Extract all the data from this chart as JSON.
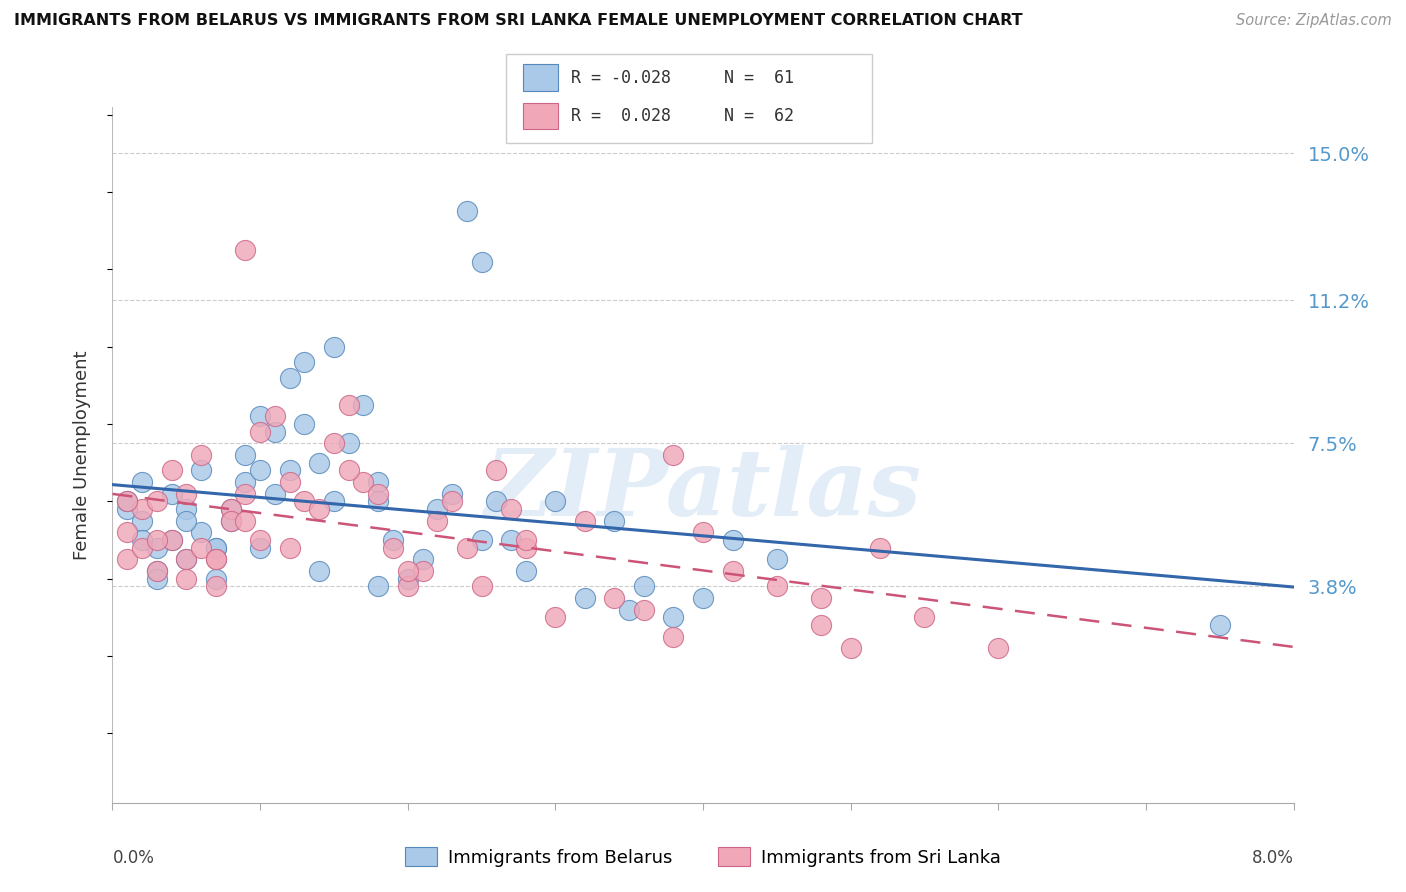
{
  "title": "IMMIGRANTS FROM BELARUS VS IMMIGRANTS FROM SRI LANKA FEMALE UNEMPLOYMENT CORRELATION CHART",
  "source": "Source: ZipAtlas.com",
  "ylabel": "Female Unemployment",
  "ytick_positions": [
    0.0,
    0.038,
    0.075,
    0.112,
    0.15
  ],
  "ytick_labels": [
    "",
    "3.8%",
    "7.5%",
    "11.2%",
    "15.0%"
  ],
  "xmin": 0.0,
  "xmax": 0.08,
  "ymin": -0.018,
  "ymax": 0.162,
  "watermark": "ZIPatlas",
  "belarus_label": "Immigrants from Belarus",
  "srilanka_label": "Immigrants from Sri Lanka",
  "belarus_color": "#aac8e8",
  "belarus_edge": "#5588bb",
  "srilanka_color": "#f0a8b8",
  "srilanka_edge": "#cc6688",
  "regression_blue": "#3366aa",
  "regression_pink": "#cc5577",
  "legend_R_belarus": "R = -0.028",
  "legend_N_belarus": "N =  61",
  "legend_R_srilanka": "R =  0.028",
  "legend_N_srilanka": "N =  62",
  "grid_color": "#cccccc",
  "right_axis_color": "#5599cc",
  "title_color": "#111111",
  "source_color": "#999999",
  "belarus_x": [
    0.001,
    0.002,
    0.002,
    0.003,
    0.003,
    0.004,
    0.004,
    0.005,
    0.005,
    0.006,
    0.006,
    0.007,
    0.007,
    0.008,
    0.008,
    0.009,
    0.009,
    0.01,
    0.01,
    0.011,
    0.011,
    0.012,
    0.012,
    0.013,
    0.013,
    0.014,
    0.015,
    0.015,
    0.016,
    0.017,
    0.018,
    0.018,
    0.019,
    0.02,
    0.021,
    0.022,
    0.023,
    0.024,
    0.025,
    0.026,
    0.027,
    0.028,
    0.03,
    0.032,
    0.034,
    0.036,
    0.038,
    0.04,
    0.042,
    0.045,
    0.001,
    0.002,
    0.003,
    0.005,
    0.007,
    0.01,
    0.014,
    0.018,
    0.025,
    0.035,
    0.075
  ],
  "belarus_y": [
    0.058,
    0.055,
    0.065,
    0.048,
    0.042,
    0.062,
    0.05,
    0.045,
    0.058,
    0.052,
    0.068,
    0.048,
    0.04,
    0.058,
    0.055,
    0.072,
    0.065,
    0.082,
    0.048,
    0.078,
    0.062,
    0.092,
    0.068,
    0.08,
    0.096,
    0.07,
    0.1,
    0.06,
    0.075,
    0.085,
    0.065,
    0.06,
    0.05,
    0.04,
    0.045,
    0.058,
    0.062,
    0.135,
    0.122,
    0.06,
    0.05,
    0.042,
    0.06,
    0.035,
    0.055,
    0.038,
    0.03,
    0.035,
    0.05,
    0.045,
    0.06,
    0.05,
    0.04,
    0.055,
    0.048,
    0.068,
    0.042,
    0.038,
    0.05,
    0.032,
    0.028
  ],
  "srilanka_x": [
    0.001,
    0.001,
    0.002,
    0.002,
    0.003,
    0.003,
    0.004,
    0.004,
    0.005,
    0.005,
    0.006,
    0.006,
    0.007,
    0.007,
    0.008,
    0.008,
    0.009,
    0.009,
    0.01,
    0.01,
    0.011,
    0.012,
    0.013,
    0.014,
    0.015,
    0.016,
    0.017,
    0.018,
    0.019,
    0.02,
    0.021,
    0.022,
    0.023,
    0.024,
    0.025,
    0.026,
    0.027,
    0.028,
    0.03,
    0.032,
    0.034,
    0.036,
    0.038,
    0.04,
    0.042,
    0.045,
    0.048,
    0.05,
    0.052,
    0.055,
    0.001,
    0.003,
    0.005,
    0.007,
    0.009,
    0.012,
    0.016,
    0.02,
    0.028,
    0.038,
    0.048,
    0.06
  ],
  "srilanka_y": [
    0.052,
    0.045,
    0.058,
    0.048,
    0.042,
    0.06,
    0.068,
    0.05,
    0.045,
    0.062,
    0.048,
    0.072,
    0.045,
    0.038,
    0.058,
    0.055,
    0.125,
    0.062,
    0.05,
    0.078,
    0.082,
    0.065,
    0.06,
    0.058,
    0.075,
    0.085,
    0.065,
    0.062,
    0.048,
    0.038,
    0.042,
    0.055,
    0.06,
    0.048,
    0.038,
    0.068,
    0.058,
    0.048,
    0.03,
    0.055,
    0.035,
    0.032,
    0.025,
    0.052,
    0.042,
    0.038,
    0.028,
    0.022,
    0.048,
    0.03,
    0.06,
    0.05,
    0.04,
    0.045,
    0.055,
    0.048,
    0.068,
    0.042,
    0.05,
    0.072,
    0.035,
    0.022
  ]
}
